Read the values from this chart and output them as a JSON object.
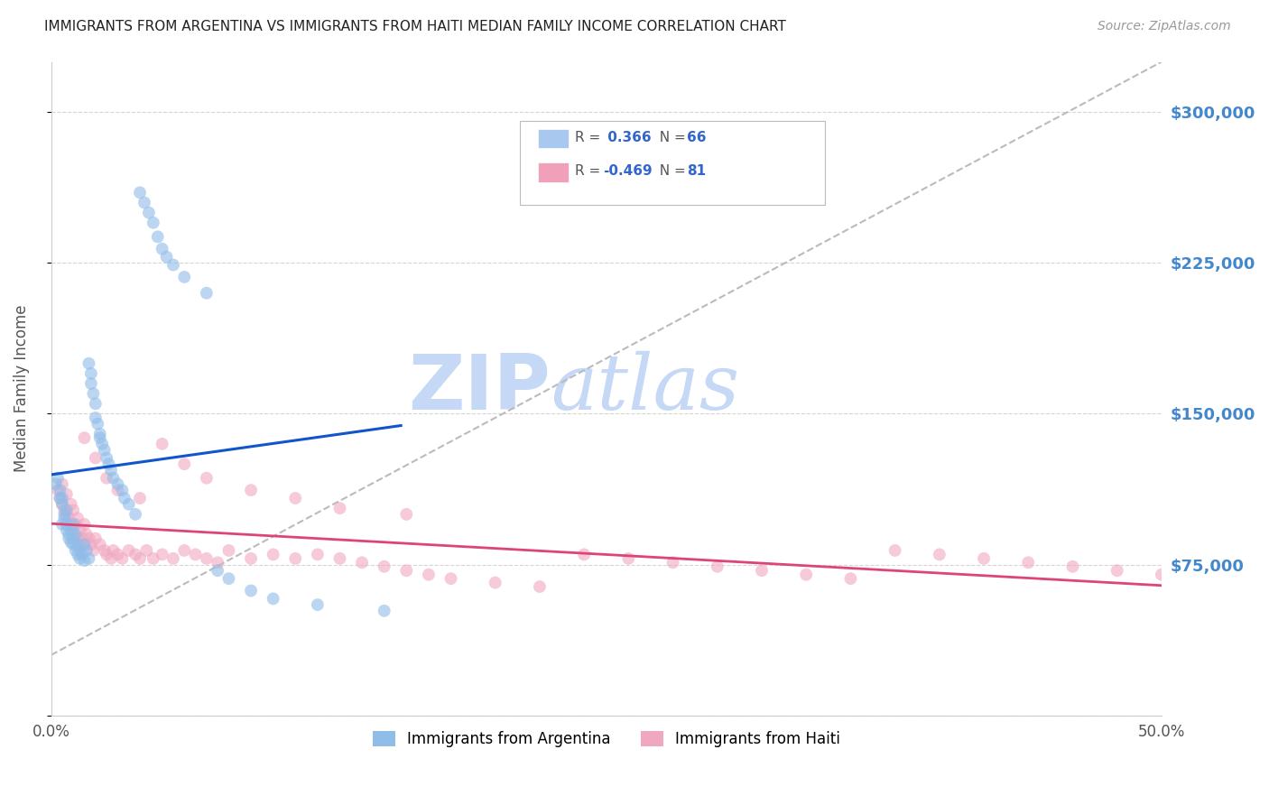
{
  "title": "IMMIGRANTS FROM ARGENTINA VS IMMIGRANTS FROM HAITI MEDIAN FAMILY INCOME CORRELATION CHART",
  "source": "Source: ZipAtlas.com",
  "ylabel_label": "Median Family Income",
  "y_ticks": [
    0,
    75000,
    150000,
    225000,
    300000
  ],
  "y_tick_labels_right": [
    "",
    "$75,000",
    "$150,000",
    "$225,000",
    "$300,000"
  ],
  "xlim": [
    0.0,
    0.5
  ],
  "ylim": [
    30000,
    325000
  ],
  "legend_entries": [
    {
      "label_R": "R = ",
      "label_Rval": " 0.366",
      "label_N": "  N = ",
      "label_Nval": "66",
      "color": "#a8c8f0"
    },
    {
      "label_R": "R = ",
      "label_Rval": "-0.469",
      "label_N": "  N = ",
      "label_Nval": "81",
      "color": "#f0a0b8"
    }
  ],
  "legend_label_argentina": "Immigrants from Argentina",
  "legend_label_haiti": "Immigrants from Haiti",
  "argentina_color": "#90bce8",
  "haiti_color": "#f0a8c0",
  "trend_argentina_color": "#1155cc",
  "trend_haiti_color": "#dd4477",
  "diagonal_color": "#bbbbbb",
  "watermark_ZIP": "ZIP",
  "watermark_atlas": "atlas",
  "watermark_color": "#c5d8f5",
  "background_color": "#ffffff",
  "grid_color": "#cccccc",
  "title_color": "#222222",
  "axis_label_color": "#555555",
  "right_tick_color": "#4488cc",
  "argentina_scatter_x": [
    0.002,
    0.003,
    0.004,
    0.004,
    0.005,
    0.005,
    0.005,
    0.006,
    0.006,
    0.007,
    0.007,
    0.007,
    0.008,
    0.008,
    0.009,
    0.009,
    0.01,
    0.01,
    0.01,
    0.011,
    0.011,
    0.012,
    0.012,
    0.013,
    0.013,
    0.014,
    0.015,
    0.015,
    0.016,
    0.017,
    0.017,
    0.018,
    0.018,
    0.019,
    0.02,
    0.02,
    0.021,
    0.022,
    0.022,
    0.023,
    0.024,
    0.025,
    0.026,
    0.027,
    0.028,
    0.03,
    0.032,
    0.033,
    0.035,
    0.038,
    0.04,
    0.042,
    0.044,
    0.046,
    0.048,
    0.05,
    0.052,
    0.055,
    0.06,
    0.07,
    0.075,
    0.08,
    0.09,
    0.1,
    0.12,
    0.15
  ],
  "argentina_scatter_y": [
    115000,
    118000,
    108000,
    112000,
    105000,
    108000,
    95000,
    100000,
    98000,
    102000,
    95000,
    92000,
    90000,
    88000,
    92000,
    86000,
    95000,
    88000,
    85000,
    90000,
    82000,
    85000,
    80000,
    78000,
    82000,
    80000,
    77000,
    85000,
    82000,
    78000,
    175000,
    165000,
    170000,
    160000,
    155000,
    148000,
    145000,
    140000,
    138000,
    135000,
    132000,
    128000,
    125000,
    122000,
    118000,
    115000,
    112000,
    108000,
    105000,
    100000,
    260000,
    255000,
    250000,
    245000,
    238000,
    232000,
    228000,
    224000,
    218000,
    210000,
    72000,
    68000,
    62000,
    58000,
    55000,
    52000
  ],
  "haiti_scatter_x": [
    0.003,
    0.004,
    0.005,
    0.005,
    0.006,
    0.007,
    0.007,
    0.008,
    0.009,
    0.009,
    0.01,
    0.01,
    0.011,
    0.012,
    0.012,
    0.013,
    0.014,
    0.015,
    0.015,
    0.016,
    0.017,
    0.018,
    0.019,
    0.02,
    0.022,
    0.024,
    0.025,
    0.027,
    0.028,
    0.03,
    0.032,
    0.035,
    0.038,
    0.04,
    0.043,
    0.046,
    0.05,
    0.055,
    0.06,
    0.065,
    0.07,
    0.075,
    0.08,
    0.09,
    0.1,
    0.11,
    0.12,
    0.13,
    0.14,
    0.15,
    0.16,
    0.17,
    0.18,
    0.2,
    0.22,
    0.24,
    0.26,
    0.28,
    0.3,
    0.32,
    0.34,
    0.36,
    0.38,
    0.4,
    0.42,
    0.44,
    0.46,
    0.48,
    0.5,
    0.015,
    0.02,
    0.025,
    0.03,
    0.04,
    0.05,
    0.06,
    0.07,
    0.09,
    0.11,
    0.13,
    0.16
  ],
  "haiti_scatter_y": [
    112000,
    108000,
    115000,
    105000,
    102000,
    110000,
    100000,
    98000,
    105000,
    95000,
    102000,
    92000,
    95000,
    98000,
    88000,
    92000,
    88000,
    95000,
    85000,
    90000,
    88000,
    85000,
    82000,
    88000,
    85000,
    82000,
    80000,
    78000,
    82000,
    80000,
    78000,
    82000,
    80000,
    78000,
    82000,
    78000,
    80000,
    78000,
    82000,
    80000,
    78000,
    76000,
    82000,
    78000,
    80000,
    78000,
    80000,
    78000,
    76000,
    74000,
    72000,
    70000,
    68000,
    66000,
    64000,
    80000,
    78000,
    76000,
    74000,
    72000,
    70000,
    68000,
    82000,
    80000,
    78000,
    76000,
    74000,
    72000,
    70000,
    138000,
    128000,
    118000,
    112000,
    108000,
    135000,
    125000,
    118000,
    112000,
    108000,
    103000,
    100000
  ]
}
